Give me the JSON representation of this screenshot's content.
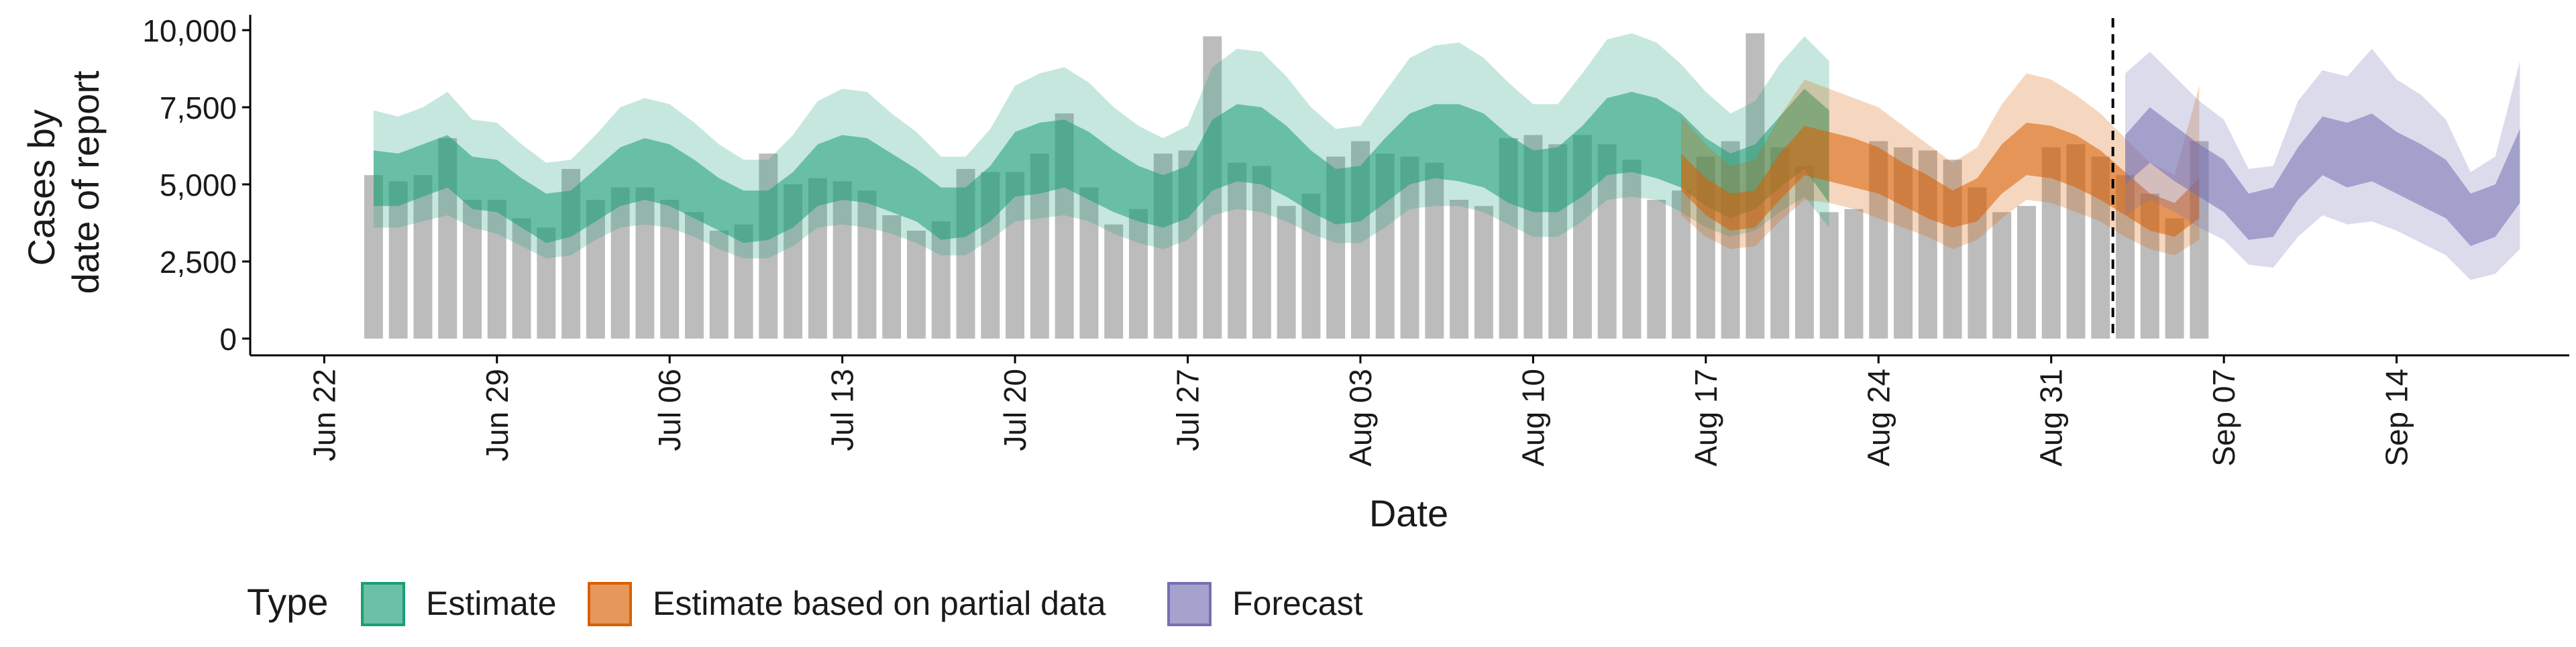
{
  "chart_data": {
    "type": "bar",
    "xlabel": "Date",
    "ylabel": [
      "Cases by",
      "date of report"
    ],
    "ylim": [
      0,
      10000
    ],
    "yticks": [
      0,
      2500,
      5000,
      7500,
      10000
    ],
    "ytick_labels": [
      "0",
      "2,500",
      "5,000",
      "7,500",
      "10,000"
    ],
    "xticks": [
      "2020-06-22",
      "2020-06-29",
      "2020-07-06",
      "2020-07-13",
      "2020-07-20",
      "2020-07-27",
      "2020-08-03",
      "2020-08-10",
      "2020-08-17",
      "2020-08-24",
      "2020-08-31",
      "2020-09-07",
      "2020-09-14"
    ],
    "xtick_labels": [
      "Jun 22",
      "Jun 29",
      "Jul 06",
      "Jul 13",
      "Jul 20",
      "Jul 27",
      "Aug 03",
      "Aug 10",
      "Aug 17",
      "Aug 24",
      "Aug 31",
      "Sep 07",
      "Sep 14"
    ],
    "x_range": [
      "2020-06-19",
      "2020-09-21"
    ],
    "bar_start": "2020-06-24",
    "reported_cases": [
      5300,
      5100,
      5300,
      6500,
      4500,
      4500,
      3900,
      3600,
      5500,
      4500,
      4900,
      4900,
      4500,
      4100,
      3500,
      3700,
      6000,
      5000,
      5200,
      5100,
      4800,
      4000,
      3500,
      3800,
      5500,
      5400,
      5400,
      6000,
      7300,
      4900,
      3700,
      4200,
      6000,
      6100,
      9800,
      5700,
      5600,
      4300,
      4700,
      5900,
      6400,
      6000,
      5900,
      5700,
      4500,
      4300,
      6500,
      6600,
      6300,
      6600,
      6300,
      5800,
      4500,
      4800,
      5900,
      6400,
      9900,
      6200,
      5600,
      4100,
      4200,
      6400,
      6200,
      6100,
      5800,
      4900,
      4100,
      4300,
      6200,
      6300,
      5900,
      5300,
      4700,
      3900,
      6400
    ],
    "forecast_start": "2020-09-02",
    "forecast_line_label": "",
    "series": [
      {
        "name": "Estimate",
        "color": "#1b9e77",
        "start": "2020-06-24",
        "median": [
          4800,
          4700,
          4900,
          5200,
          4500,
          4500,
          4000,
          3600,
          3700,
          4300,
          4800,
          5000,
          4900,
          4400,
          4000,
          3700,
          3700,
          4200,
          4900,
          5100,
          5000,
          4700,
          4300,
          3800,
          3800,
          4400,
          5200,
          5400,
          5500,
          5200,
          4800,
          4400,
          4200,
          4500,
          5600,
          6000,
          5900,
          5400,
          4800,
          4400,
          4500,
          5200,
          5800,
          6000,
          6000,
          5800,
          5300,
          4900,
          4900,
          5500,
          6200,
          6300,
          6200,
          5800,
          5200,
          4800,
          5100,
          5800,
          6400,
          5800
        ],
        "inner_low": [
          4300,
          4300,
          4600,
          4900,
          4200,
          4100,
          3600,
          3100,
          3300,
          3800,
          4300,
          4500,
          4300,
          3900,
          3500,
          3100,
          3200,
          3600,
          4300,
          4500,
          4400,
          4100,
          3800,
          3200,
          3300,
          3800,
          4600,
          4700,
          4900,
          4500,
          4100,
          3800,
          3600,
          3900,
          4800,
          5100,
          5000,
          4600,
          4100,
          3700,
          3800,
          4400,
          5000,
          5200,
          5100,
          4900,
          4400,
          4100,
          4100,
          4600,
          5300,
          5400,
          5200,
          4900,
          4300,
          3900,
          4200,
          4900,
          5500,
          4400
        ],
        "inner_high": [
          6100,
          6000,
          6300,
          6600,
          5900,
          5800,
          5200,
          4700,
          4800,
          5500,
          6200,
          6500,
          6300,
          5800,
          5200,
          4800,
          4800,
          5400,
          6300,
          6600,
          6500,
          6000,
          5500,
          4900,
          4900,
          5600,
          6700,
          7000,
          7100,
          6700,
          6100,
          5600,
          5300,
          5600,
          7100,
          7600,
          7500,
          6900,
          6100,
          5500,
          5600,
          6500,
          7300,
          7600,
          7600,
          7300,
          6600,
          6100,
          6200,
          6900,
          7800,
          8000,
          7800,
          7300,
          6500,
          6000,
          6300,
          7200,
          8100,
          7400
        ],
        "outer_low": [
          3600,
          3600,
          3800,
          4000,
          3600,
          3400,
          3000,
          2600,
          2700,
          3200,
          3600,
          3700,
          3600,
          3300,
          2900,
          2600,
          2600,
          3000,
          3600,
          3700,
          3600,
          3400,
          3100,
          2700,
          2700,
          3200,
          3800,
          3900,
          4000,
          3800,
          3400,
          3100,
          2900,
          3200,
          4000,
          4200,
          4100,
          3800,
          3400,
          3100,
          3100,
          3600,
          4200,
          4300,
          4300,
          4100,
          3700,
          3300,
          3300,
          3800,
          4500,
          4600,
          4500,
          4100,
          3600,
          3300,
          3500,
          4100,
          4600,
          3600
        ],
        "outer_high": [
          7400,
          7200,
          7500,
          8000,
          7100,
          7000,
          6300,
          5700,
          5800,
          6600,
          7500,
          7800,
          7600,
          7000,
          6300,
          5800,
          5800,
          6600,
          7700,
          8100,
          8000,
          7300,
          6700,
          5900,
          5900,
          6800,
          8200,
          8600,
          8800,
          8300,
          7500,
          6900,
          6500,
          6900,
          8800,
          9400,
          9300,
          8500,
          7500,
          6800,
          6900,
          8000,
          9100,
          9500,
          9600,
          9100,
          8300,
          7600,
          7600,
          8600,
          9700,
          9900,
          9600,
          8900,
          8000,
          7300,
          7700,
          8900,
          9800,
          9000
        ]
      },
      {
        "name": "Estimate based on partial data",
        "color": "#d95f02",
        "start": "2020-08-16",
        "median": [
          5400,
          4600,
          4100,
          4200,
          5200,
          6000,
          5800,
          5600,
          5400,
          5000,
          4600,
          4200,
          4500,
          5500,
          6100,
          6000,
          5700,
          5300,
          4700,
          4100,
          3800,
          4500
        ],
        "inner_low": [
          4800,
          4000,
          3500,
          3600,
          4500,
          5300,
          5100,
          4900,
          4700,
          4300,
          3900,
          3600,
          3800,
          4700,
          5300,
          5200,
          4900,
          4500,
          4000,
          3500,
          3300,
          3900
        ],
        "inner_high": [
          6000,
          5200,
          4700,
          4800,
          6000,
          6900,
          6700,
          6500,
          6200,
          5700,
          5300,
          4800,
          5200,
          6300,
          7000,
          6900,
          6600,
          6100,
          5400,
          4700,
          4400,
          5200
        ],
        "outer_low": [
          4000,
          3300,
          2900,
          3000,
          3800,
          4500,
          4400,
          4200,
          3900,
          3600,
          3300,
          2900,
          3200,
          3900,
          4500,
          4400,
          4100,
          3800,
          3300,
          2900,
          2700,
          3200
        ],
        "outer_high": [
          7200,
          6300,
          5600,
          5800,
          7200,
          8400,
          8100,
          7800,
          7500,
          6900,
          6300,
          5700,
          6200,
          7600,
          8600,
          8400,
          7900,
          7300,
          6500,
          5700,
          5300,
          8200
        ]
      },
      {
        "name": "Forecast",
        "color": "#7570b3",
        "start": "2020-09-03",
        "median": [
          5800,
          6600,
          6000,
          5500,
          5000,
          4000,
          4200,
          5400,
          6300,
          6000,
          6300,
          5800,
          5400,
          5000,
          4000,
          4300,
          5600
        ],
        "inner_low": [
          5000,
          5700,
          5100,
          4600,
          4100,
          3200,
          3300,
          4500,
          5300,
          4900,
          5100,
          4700,
          4300,
          3900,
          3000,
          3300,
          4400
        ],
        "inner_high": [
          6600,
          7500,
          6900,
          6300,
          5800,
          4700,
          4900,
          6200,
          7200,
          7000,
          7300,
          6700,
          6300,
          5800,
          4700,
          5000,
          6800
        ],
        "outer_low": [
          4000,
          4500,
          4100,
          3600,
          3200,
          2400,
          2300,
          3300,
          4000,
          3700,
          3800,
          3500,
          3100,
          2700,
          1900,
          2100,
          2900
        ],
        "outer_high": [
          8600,
          9300,
          8500,
          7700,
          7100,
          5500,
          5600,
          7700,
          8700,
          8500,
          9400,
          8400,
          7900,
          7100,
          5400,
          5900,
          9000
        ]
      }
    ],
    "legend": {
      "title": "Type",
      "placement": "bottom",
      "items": [
        "Estimate",
        "Estimate based on partial data",
        "Forecast"
      ]
    },
    "colors": {
      "bar": "#bcbcbc",
      "axis": "#000000"
    },
    "grid": false
  }
}
